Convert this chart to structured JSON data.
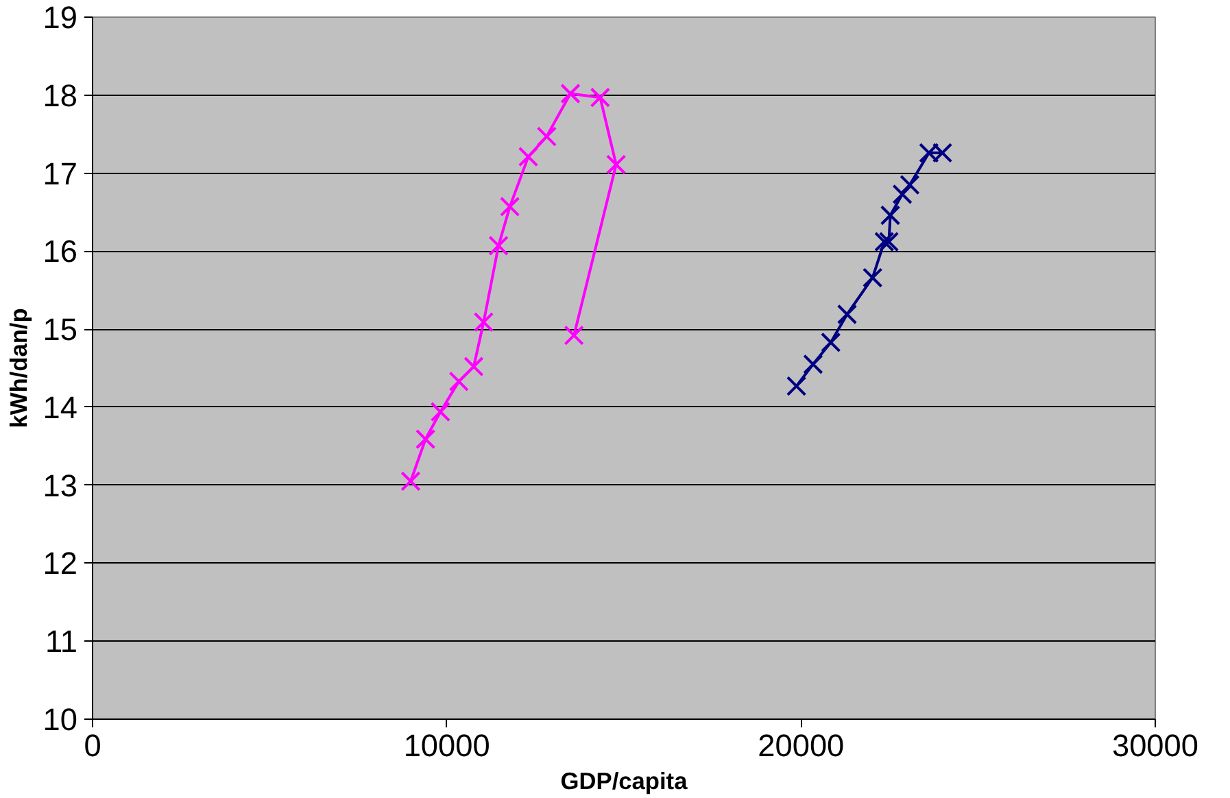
{
  "chart_data": {
    "type": "line",
    "xlabel": "GDP/capita",
    "ylabel": "kWh/dan/p",
    "xlim": [
      0,
      30000
    ],
    "xticks": [
      0,
      10000,
      20000,
      30000
    ],
    "ylim": [
      10,
      19
    ],
    "yticks": [
      10,
      11,
      12,
      13,
      14,
      15,
      16,
      17,
      18,
      19
    ],
    "grid": "y",
    "marker": "cross",
    "line_style": "solid",
    "series": [
      {
        "color": "#ff00ff",
        "x": [
          8980,
          9400,
          9820,
          10340,
          10760,
          11040,
          11460,
          11780,
          12300,
          12820,
          13490,
          14330,
          14780,
          13590
        ],
        "values": [
          13.05,
          13.59,
          13.94,
          14.33,
          14.52,
          15.09,
          16.07,
          16.57,
          17.21,
          17.47,
          18.02,
          17.97,
          17.11,
          14.92
        ]
      },
      {
        "color": "#000080",
        "x": [
          19870,
          20340,
          20840,
          21300,
          22020,
          22350,
          22480,
          22520,
          22860,
          23070,
          23610,
          23990
        ],
        "values": [
          14.27,
          14.55,
          14.83,
          15.19,
          15.66,
          16.12,
          16.12,
          16.46,
          16.73,
          16.85,
          17.26,
          17.26
        ]
      }
    ]
  }
}
